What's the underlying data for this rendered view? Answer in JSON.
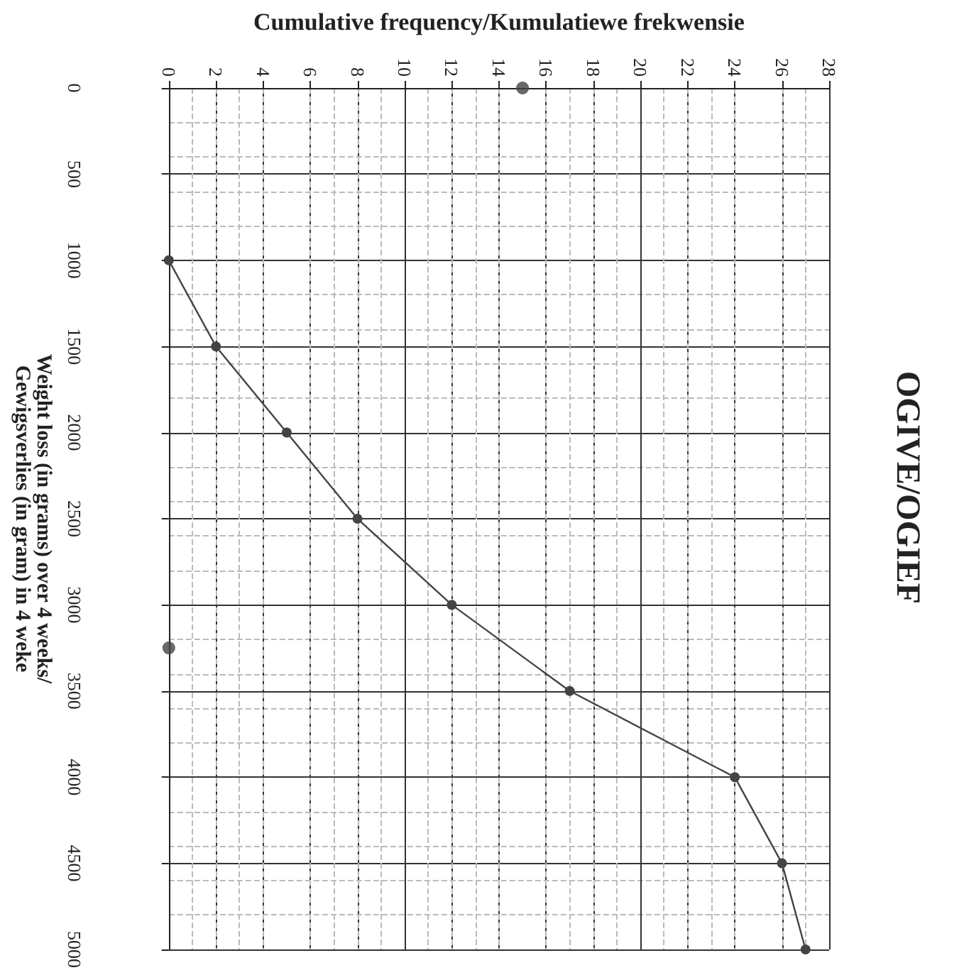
{
  "chart_data": {
    "type": "line",
    "title": "OGIVE/OGIEF",
    "xlabel": "Cumulative frequency/Kumulatiewe frekwensie",
    "ylabel": "Weight loss (in grams) over 4 weeks/\nGewigsverlies (in gram) in 4 weke",
    "x": [
      0,
      2,
      5,
      8,
      12,
      17,
      24,
      26,
      27
    ],
    "series": [
      {
        "color": "#444444",
        "values": [
          1000,
          1500,
          2000,
          2500,
          3000,
          3500,
          4000,
          4500,
          5000
        ]
      },
      {
        "type": "scatter",
        "color": "#444444",
        "x": [
          15,
          0
        ],
        "values": [
          0,
          3250
        ]
      }
    ],
    "xlim": [
      0,
      28
    ],
    "xticks": [
      0,
      2,
      4,
      6,
      8,
      10,
      12,
      14,
      16,
      18,
      20,
      22,
      24,
      26,
      28
    ],
    "ylim": [
      5000,
      0
    ],
    "yticks": [
      0,
      500,
      1000,
      1500,
      2000,
      2500,
      3000,
      3500,
      4000,
      4500,
      5000
    ],
    "grid": true,
    "marker": "circle",
    "line_style": "solid"
  }
}
